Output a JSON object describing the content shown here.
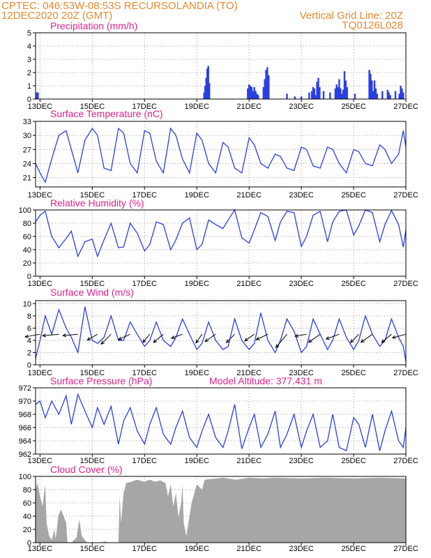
{
  "header": {
    "line1_left": "CPTEC:   046:53W-08:53S   RECURSOLANDIA (TO)",
    "line2_left": "12DEC2020 20Z (GMT)",
    "line2_right": "Vertical Grid Line: 20Z",
    "line3_right": "TQ0126L028"
  },
  "x_tick_labels": [
    "13DEC",
    "15DEC",
    "17DEC",
    "19DEC",
    "21DEC",
    "23DEC",
    "25DEC",
    "27DEC"
  ],
  "colors": {
    "header": "#e8892f",
    "panel_title": "#e0218a",
    "series": "#2a3ee6",
    "cloud": "#a6a6a6",
    "grid": "#999999"
  },
  "chart_data": [
    {
      "type": "bar",
      "title": "Precipitation (mm/h)",
      "ylim": [
        0,
        5
      ],
      "yticks": [
        0,
        1,
        2,
        3,
        4,
        5
      ],
      "x_range_days": [
        12.83,
        27.0
      ],
      "grid": true,
      "bars_x_day": [
        12.88,
        12.92,
        19.28,
        19.32,
        19.36,
        19.4,
        19.44,
        19.48,
        20.95,
        21.0,
        21.05,
        21.1,
        21.15,
        21.2,
        21.25,
        21.3,
        21.35,
        21.55,
        21.6,
        21.65,
        21.7,
        21.75,
        22.45,
        22.75,
        23.0,
        23.3,
        23.4,
        23.45,
        23.5,
        23.55,
        23.6,
        23.65,
        23.7,
        23.85,
        24.1,
        24.3,
        24.35,
        24.4,
        24.45,
        24.5,
        24.55,
        24.6,
        24.65,
        24.7,
        24.75,
        25.05,
        25.6,
        25.65,
        25.7,
        25.75,
        25.8,
        25.85,
        25.9,
        26.1,
        26.3,
        26.35,
        26.4,
        26.6,
        26.75,
        26.8,
        26.85,
        26.9
      ],
      "bars_value": [
        0.5,
        0.5,
        0.5,
        1.0,
        1.6,
        2.3,
        2.5,
        1.2,
        0.8,
        1.1,
        1.0,
        0.9,
        0.6,
        0.9,
        0.6,
        0.4,
        0.3,
        0.9,
        1.5,
        2.2,
        2.4,
        1.8,
        0.4,
        0.2,
        0.2,
        0.5,
        0.6,
        0.9,
        0.8,
        0.3,
        1.3,
        1.6,
        0.9,
        0.6,
        0.5,
        0.8,
        1.1,
        0.9,
        1.5,
        0.8,
        0.4,
        0.7,
        2.1,
        1.4,
        0.9,
        0.4,
        2.2,
        1.9,
        1.4,
        0.6,
        1.4,
        0.8,
        0.4,
        0.6,
        0.7,
        0.5,
        0.3,
        0.6,
        0.4,
        1.0,
        0.8,
        0.5
      ]
    },
    {
      "type": "line",
      "title": "Surface Temperature (nC)",
      "ylim": [
        19,
        33
      ],
      "yticks": [
        21,
        24,
        27,
        30,
        33
      ],
      "x": [
        12.83,
        13.0,
        13.2,
        13.45,
        13.72,
        14.0,
        14.2,
        14.45,
        14.72,
        15.0,
        15.2,
        15.45,
        15.72,
        16.0,
        16.2,
        16.45,
        16.72,
        17.0,
        17.2,
        17.45,
        17.72,
        18.0,
        18.2,
        18.45,
        18.72,
        19.0,
        19.2,
        19.45,
        19.72,
        20.0,
        20.2,
        20.45,
        20.72,
        21.0,
        21.2,
        21.45,
        21.72,
        22.0,
        22.2,
        22.45,
        22.72,
        23.0,
        23.2,
        23.45,
        23.72,
        24.0,
        24.2,
        24.45,
        24.72,
        25.0,
        25.2,
        25.45,
        25.72,
        26.0,
        26.2,
        26.45,
        26.72,
        26.9,
        27.0
      ],
      "y": [
        24.0,
        22.0,
        20.0,
        25.0,
        30.0,
        31.0,
        27.0,
        22.0,
        29.0,
        31.5,
        30.0,
        23.0,
        22.5,
        31.5,
        30.5,
        24.0,
        22.0,
        31.0,
        30.5,
        24.5,
        22.0,
        31.5,
        30.0,
        25.0,
        22.0,
        30.5,
        29.0,
        24.0,
        22.0,
        28.5,
        27.5,
        23.0,
        22.0,
        29.5,
        28.0,
        24.0,
        23.0,
        26.0,
        25.5,
        23.0,
        22.5,
        27.5,
        27.0,
        23.5,
        23.0,
        27.5,
        27.0,
        24.0,
        22.0,
        27.0,
        26.5,
        24.0,
        23.5,
        28.0,
        27.0,
        24.0,
        26.0,
        31.0,
        27.5
      ]
    },
    {
      "type": "line",
      "title": "Relative Humidity (%)",
      "ylim": [
        0,
        100
      ],
      "yticks": [
        0,
        20,
        40,
        60,
        80,
        100
      ],
      "x": [
        12.83,
        13.0,
        13.2,
        13.45,
        13.72,
        14.0,
        14.2,
        14.45,
        14.72,
        15.0,
        15.2,
        15.45,
        15.72,
        16.0,
        16.2,
        16.45,
        16.72,
        17.0,
        17.2,
        17.45,
        17.72,
        18.0,
        18.2,
        18.45,
        18.72,
        19.0,
        19.2,
        19.45,
        19.72,
        20.0,
        20.2,
        20.45,
        20.72,
        21.0,
        21.2,
        21.45,
        21.72,
        22.0,
        22.2,
        22.45,
        22.72,
        23.0,
        23.2,
        23.45,
        23.72,
        24.0,
        24.2,
        24.45,
        24.72,
        25.0,
        25.2,
        25.45,
        25.72,
        26.0,
        26.2,
        26.45,
        26.72,
        26.9,
        27.0
      ],
      "y": [
        82.0,
        92.0,
        98.0,
        60.0,
        43.0,
        57.0,
        68.0,
        30.0,
        52.0,
        56.0,
        30.0,
        55.0,
        80.0,
        43.0,
        44.0,
        80.0,
        65.0,
        38.0,
        48.0,
        82.0,
        78.0,
        40.0,
        55.0,
        80.0,
        88.0,
        40.0,
        48.0,
        85.0,
        78.0,
        72.0,
        85.0,
        100.0,
        58.0,
        50.0,
        70.0,
        96.0,
        90.0,
        54.0,
        82.0,
        98.0,
        96.0,
        45.0,
        60.0,
        92.0,
        98.0,
        52.0,
        82.0,
        98.0,
        100.0,
        62.0,
        76.0,
        100.0,
        96.0,
        52.0,
        78.0,
        99.0,
        78.0,
        44.0,
        70.0
      ]
    },
    {
      "type": "line",
      "title": "Surface Wind (m/s)",
      "ylim": [
        0,
        10.5
      ],
      "yticks": [
        0,
        2,
        4,
        6,
        8,
        10
      ],
      "x": [
        12.83,
        13.0,
        13.2,
        13.45,
        13.72,
        14.0,
        14.2,
        14.45,
        14.72,
        15.0,
        15.2,
        15.45,
        15.72,
        16.0,
        16.2,
        16.45,
        16.72,
        17.0,
        17.2,
        17.45,
        17.72,
        18.0,
        18.2,
        18.45,
        18.72,
        19.0,
        19.2,
        19.45,
        19.72,
        20.0,
        20.2,
        20.45,
        20.72,
        21.0,
        21.2,
        21.45,
        21.72,
        22.0,
        22.2,
        22.45,
        22.72,
        23.0,
        23.2,
        23.45,
        23.72,
        24.0,
        24.2,
        24.45,
        24.72,
        25.0,
        25.2,
        25.45,
        25.72,
        26.0,
        26.2,
        26.45,
        26.72,
        26.9,
        27.0
      ],
      "y": [
        1.0,
        4.0,
        8.0,
        5.0,
        9.0,
        6.0,
        4.5,
        2.0,
        9.5,
        4.0,
        3.5,
        4.5,
        8.0,
        4.0,
        4.0,
        7.0,
        5.0,
        3.0,
        4.0,
        7.0,
        4.0,
        3.0,
        4.5,
        7.5,
        5.0,
        2.5,
        3.5,
        7.0,
        4.0,
        2.5,
        3.0,
        7.5,
        4.0,
        2.5,
        3.5,
        8.5,
        4.0,
        2.0,
        4.0,
        7.5,
        5.5,
        2.0,
        3.0,
        7.5,
        5.0,
        2.5,
        4.0,
        7.5,
        4.5,
        2.5,
        4.0,
        8.0,
        5.0,
        3.0,
        4.0,
        7.5,
        4.5,
        3.0,
        0.5
      ],
      "arrows_x_day": [
        13.0,
        13.72,
        14.45,
        15.2,
        15.72,
        16.45,
        17.2,
        17.72,
        18.45,
        19.2,
        19.72,
        20.45,
        21.2,
        21.72,
        22.45,
        23.2,
        23.72,
        24.45,
        25.2,
        25.72,
        26.45,
        27.0
      ],
      "arrows_speed": [
        5.5,
        6.0,
        5.5,
        4.0,
        5.0,
        4.5,
        3.5,
        4.5,
        4.0,
        3.5,
        4.5,
        4.0,
        4.0,
        4.5,
        6.5,
        4.0,
        5.0,
        5.0,
        4.0,
        5.0,
        4.5,
        5.0
      ],
      "arrows_dir_deg": [
        190,
        185,
        185,
        210,
        225,
        205,
        230,
        220,
        200,
        235,
        215,
        225,
        215,
        205,
        230,
        190,
        215,
        200,
        225,
        215,
        220,
        195
      ]
    },
    {
      "type": "line",
      "title": "Surface Pressure (hPa)",
      "annotation": "Model Altitude: 377.431 m",
      "ylim": [
        962,
        972
      ],
      "yticks": [
        962,
        964,
        966,
        968,
        970,
        972
      ],
      "x": [
        12.83,
        13.0,
        13.2,
        13.45,
        13.72,
        14.0,
        14.2,
        14.45,
        14.72,
        15.0,
        15.2,
        15.45,
        15.72,
        16.0,
        16.2,
        16.45,
        16.72,
        17.0,
        17.2,
        17.45,
        17.72,
        18.0,
        18.2,
        18.45,
        18.72,
        19.0,
        19.2,
        19.45,
        19.72,
        20.0,
        20.2,
        20.45,
        20.72,
        21.0,
        21.2,
        21.45,
        21.72,
        22.0,
        22.2,
        22.45,
        22.72,
        23.0,
        23.2,
        23.45,
        23.72,
        24.0,
        24.2,
        24.45,
        24.72,
        25.0,
        25.2,
        25.45,
        25.72,
        26.0,
        26.2,
        26.45,
        26.72,
        26.9,
        27.0
      ],
      "y": [
        969.5,
        970.0,
        967.5,
        970.0,
        968.0,
        970.8,
        966.5,
        971.0,
        968.5,
        966.0,
        969.0,
        966.5,
        969.2,
        963.5,
        967.0,
        969.0,
        965.5,
        963.5,
        966.5,
        969.0,
        965.0,
        963.5,
        966.0,
        968.5,
        964.5,
        963.0,
        965.5,
        968.0,
        964.5,
        963.0,
        965.5,
        969.5,
        962.8,
        966.0,
        968.0,
        963.0,
        965.0,
        968.5,
        963.0,
        965.0,
        968.0,
        963.0,
        965.5,
        968.0,
        963.0,
        964.0,
        968.0,
        963.0,
        962.5,
        967.5,
        966.5,
        963.0,
        968.0,
        962.5,
        965.5,
        968.5,
        964.0,
        963.0,
        966.0
      ]
    },
    {
      "type": "area",
      "title": "Cloud Cover (%)",
      "ylim": [
        0,
        100
      ],
      "yticks": [
        0,
        20,
        40,
        60,
        80,
        100
      ],
      "x": [
        12.83,
        12.9,
        13.0,
        13.1,
        13.2,
        13.25,
        13.35,
        13.45,
        13.55,
        13.6,
        13.7,
        13.8,
        14.0,
        14.05,
        14.2,
        14.4,
        14.5,
        14.6,
        14.8,
        15.0,
        15.3,
        15.5,
        15.6,
        15.8,
        16.0,
        16.05,
        16.1,
        16.2,
        16.3,
        16.5,
        16.7,
        17.0,
        17.2,
        17.4,
        17.6,
        17.8,
        17.9,
        18.0,
        18.1,
        18.2,
        18.3,
        18.4,
        18.45,
        18.5,
        18.6,
        18.7,
        18.8,
        19.0,
        19.2,
        19.3,
        20.0,
        20.5,
        21.0,
        21.5,
        22.0,
        23.0,
        24.0,
        25.0,
        26.0,
        27.0
      ],
      "y": [
        80.0,
        90.0,
        70.0,
        55.0,
        88.0,
        30.0,
        10.0,
        4.0,
        20.0,
        5.0,
        40.0,
        50.0,
        30.0,
        0.0,
        0.0,
        8.0,
        35.0,
        10.0,
        0.0,
        0.0,
        0.0,
        2.0,
        0.0,
        0.0,
        0.0,
        70.0,
        30.0,
        75.0,
        90.0,
        92.0,
        95.0,
        92.0,
        95.0,
        92.0,
        94.0,
        90.0,
        70.0,
        88.0,
        55.0,
        75.0,
        38.0,
        60.0,
        88.0,
        30.0,
        10.0,
        35.0,
        60.0,
        88.0,
        80.0,
        95.0,
        98.0,
        95.0,
        98.0,
        97.0,
        98.0,
        97.0,
        98.0,
        97.0,
        98.0,
        97.0
      ]
    }
  ]
}
